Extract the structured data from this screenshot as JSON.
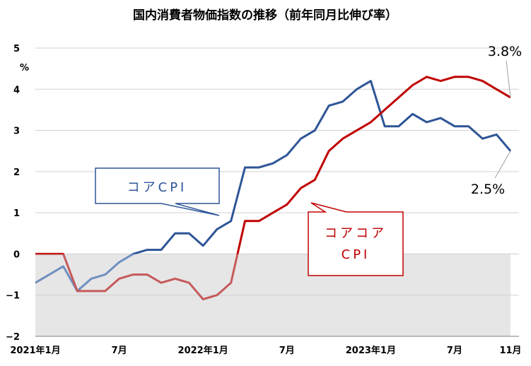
{
  "chart_data": {
    "type": "line",
    "title": "国内消費者物価指数の推移（前年同月比伸び率）",
    "ylabel": "%",
    "ylim": [
      -2,
      5
    ],
    "yticks": [
      5,
      4,
      3,
      2,
      1,
      0,
      -1,
      -2
    ],
    "ytick_labels": [
      "5",
      "4",
      "3",
      "2",
      "1",
      "0",
      "−1",
      "−2"
    ],
    "xtick_labels": [
      {
        "index": 0,
        "label": "2021年1月"
      },
      {
        "index": 6,
        "label": "7月"
      },
      {
        "index": 12,
        "label": "2022年1月"
      },
      {
        "index": 18,
        "label": "7月"
      },
      {
        "index": 24,
        "label": "2023年1月"
      },
      {
        "index": 30,
        "label": "7月"
      },
      {
        "index": 34,
        "label": "11月"
      }
    ],
    "x": [
      "2021-01",
      "2021-02",
      "2021-03",
      "2021-04",
      "2021-05",
      "2021-06",
      "2021-07",
      "2021-08",
      "2021-09",
      "2021-10",
      "2021-11",
      "2021-12",
      "2022-01",
      "2022-02",
      "2022-03",
      "2022-04",
      "2022-05",
      "2022-06",
      "2022-07",
      "2022-08",
      "2022-09",
      "2022-10",
      "2022-11",
      "2022-12",
      "2023-01",
      "2023-02",
      "2023-03",
      "2023-04",
      "2023-05",
      "2023-06",
      "2023-07",
      "2023-08",
      "2023-09",
      "2023-10",
      "2023-11"
    ],
    "shaded_region": {
      "from": -2,
      "to": 0,
      "color": "#e6e6e6"
    },
    "grid": "horizontal",
    "series": [
      {
        "name": "コアCPI",
        "color": "#2e5597",
        "negative_color": "#6f8fbf",
        "values": [
          -0.7,
          -0.5,
          -0.3,
          -0.9,
          -0.6,
          -0.5,
          -0.2,
          0.0,
          0.1,
          0.1,
          0.5,
          0.5,
          0.2,
          0.6,
          0.8,
          2.1,
          2.1,
          2.2,
          2.4,
          2.8,
          3.0,
          3.6,
          3.7,
          4.0,
          4.2,
          3.1,
          3.1,
          3.4,
          3.2,
          3.3,
          3.1,
          3.1,
          2.8,
          2.9,
          2.5
        ]
      },
      {
        "name": "コアコア CPI",
        "color": "#c00000",
        "negative_color": "#c55a5a",
        "values": [
          0.0,
          0.0,
          0.0,
          -0.9,
          -0.9,
          -0.9,
          -0.6,
          -0.5,
          -0.5,
          -0.7,
          -0.6,
          -0.7,
          -1.1,
          -1.0,
          -0.7,
          0.8,
          0.8,
          1.0,
          1.2,
          1.6,
          1.8,
          2.5,
          2.8,
          3.0,
          3.2,
          3.5,
          3.8,
          4.1,
          4.3,
          4.2,
          4.3,
          4.3,
          4.2,
          4.0,
          3.8
        ]
      }
    ],
    "annotations": {
      "core_end_label": "2.5%",
      "corecore_end_label": "3.8%",
      "core_callout_text": "コアCPI",
      "corecore_callout_line1": "コアコア",
      "corecore_callout_line2": "CPI"
    }
  }
}
